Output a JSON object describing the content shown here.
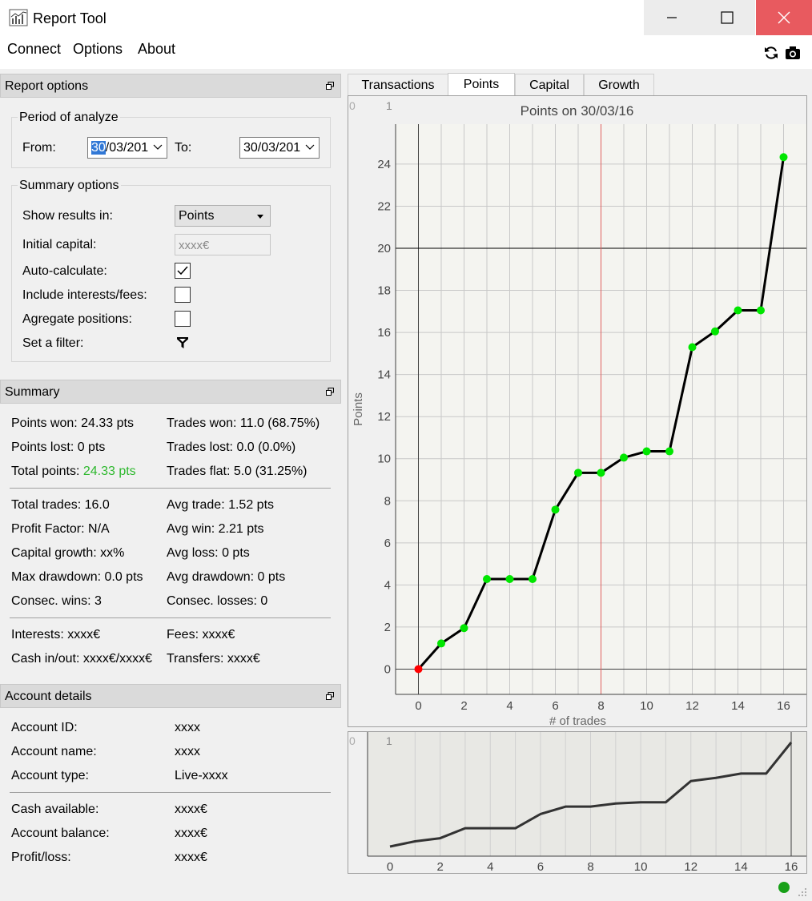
{
  "window": {
    "title": "Report Tool",
    "icons": {
      "app": "chart-app-icon",
      "minimize": "minimize-icon",
      "maximize": "maximize-icon",
      "close": "close-icon"
    }
  },
  "menu": {
    "items": [
      "Connect",
      "Options",
      "About"
    ]
  },
  "toolbar": {
    "icons": [
      "refresh-icon",
      "camera-icon"
    ]
  },
  "report_options": {
    "header": "Report options",
    "period": {
      "title": "Period of analyze",
      "from_label": "From:",
      "from_selected": "30",
      "from_rest": "/03/201",
      "to_label": "To:",
      "to_value": "30/03/201"
    },
    "summary_options": {
      "title": "Summary options",
      "show_results_label": "Show results in:",
      "show_results_value": "Points",
      "initial_capital_label": "Initial capital:",
      "initial_capital_placeholder": "xxxx€",
      "auto_calculate_label": "Auto-calculate:",
      "auto_calculate_checked": true,
      "include_fees_label": "Include interests/fees:",
      "include_fees_checked": false,
      "aggregate_label": "Agregate positions:",
      "aggregate_checked": false,
      "filter_label": "Set a filter:"
    }
  },
  "summary": {
    "header": "Summary",
    "points_won": "Points won: 24.33 pts",
    "trades_won": "Trades won: 11.0 (68.75%)",
    "points_lost": "Points lost: 0 pts",
    "trades_lost": "Trades lost: 0.0 (0.0%)",
    "total_points_label": "Total points: ",
    "total_points_value": "24.33 pts",
    "trades_flat": "Trades flat: 5.0 (31.25%)",
    "total_trades": "Total trades: 16.0",
    "avg_trade": "Avg trade: 1.52 pts",
    "profit_factor": "Profit Factor: N/A",
    "avg_win": "Avg win: 2.21 pts",
    "capital_growth": "Capital growth: xx%",
    "avg_loss": "Avg loss: 0 pts",
    "max_drawdown": "Max drawdown: 0.0 pts",
    "avg_drawdown": "Avg drawdown: 0 pts",
    "consec_wins": "Consec. wins: 3",
    "consec_losses": "Consec. losses: 0",
    "interests": "Interests: xxxx€",
    "fees": "Fees: xxxx€",
    "cash_inout": "Cash in/out: xxxx€/xxxx€",
    "transfers": "Transfers: xxxx€"
  },
  "account": {
    "header": "Account details",
    "rows": [
      {
        "label": "Account ID:",
        "value": "xxxx"
      },
      {
        "label": "Account name:",
        "value": "xxxx"
      },
      {
        "label": "Account type:",
        "value": "Live-xxxx"
      },
      {
        "label": "Cash available:",
        "value": "xxxx€"
      },
      {
        "label": "Account balance:",
        "value": "xxxx€"
      },
      {
        "label": "Profit/loss:",
        "value": "xxxx€"
      }
    ]
  },
  "tabs": [
    "Transactions",
    "Points",
    "Capital",
    "Growth"
  ],
  "active_tab": "Points",
  "chart_data": {
    "type": "line",
    "title": "Points on 30/03/16",
    "xlabel": "# of trades",
    "ylabel": "Points",
    "corner_labels": [
      "0",
      "1"
    ],
    "x": [
      0,
      1,
      2,
      3,
      4,
      5,
      6,
      7,
      8,
      9,
      10,
      11,
      12,
      13,
      14,
      15,
      16
    ],
    "values": [
      0,
      1.22,
      1.95,
      4.28,
      4.28,
      4.28,
      7.58,
      9.33,
      9.33,
      10.05,
      10.35,
      10.35,
      15.3,
      16.05,
      17.05,
      17.05,
      24.33
    ],
    "xlim": [
      -1,
      17
    ],
    "ylim": [
      -1.2,
      25.9
    ],
    "xticks": [
      "0",
      "2",
      "4",
      "6",
      "8",
      "10",
      "12",
      "14",
      "16"
    ],
    "yticks": [
      "0",
      "2",
      "4",
      "6",
      "8",
      "10",
      "12",
      "14",
      "16",
      "18",
      "20",
      "22",
      "24"
    ],
    "colors": {
      "line": "#000000",
      "point": "#00e600",
      "first_point": "#ff0000",
      "vline": "#e06060",
      "hline": "#000000"
    },
    "grid": true,
    "vline_x": 8,
    "hline_y": 20
  },
  "overview": {
    "corner_labels": [
      "0",
      "1"
    ],
    "xticks": [
      "0",
      "2",
      "4",
      "6",
      "8",
      "10",
      "12",
      "14",
      "16"
    ]
  }
}
